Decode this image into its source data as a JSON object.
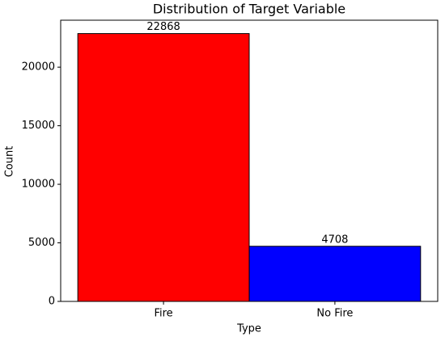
{
  "chart_data": {
    "type": "bar",
    "title": "Distribution of Target Variable",
    "x_label": "Type",
    "y_label": "Count",
    "categories": [
      "Fire",
      "No Fire"
    ],
    "values": [
      22868,
      4708
    ],
    "colors": [
      "red",
      "blue"
    ],
    "edge_color": "black",
    "ylim": [
      0,
      24011
    ],
    "yticks": [
      0,
      5000,
      10000,
      15000,
      20000
    ],
    "grid": false
  }
}
